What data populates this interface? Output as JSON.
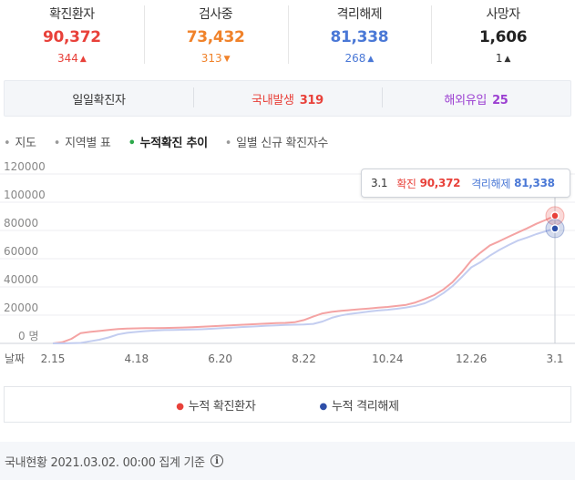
{
  "stats": [
    {
      "label": "확진환자",
      "value": "90,372",
      "delta": "344",
      "color": "#e8413a",
      "delta_color": "#e8413a",
      "delta_direction": "up"
    },
    {
      "label": "검사중",
      "value": "73,432",
      "delta": "313",
      "color": "#f0822a",
      "delta_color": "#f0822a",
      "delta_direction": "down"
    },
    {
      "label": "격리해제",
      "value": "81,338",
      "delta": "268",
      "color": "#4a78d6",
      "delta_color": "#4a78d6",
      "delta_direction": "up"
    },
    {
      "label": "사망자",
      "value": "1,606",
      "delta": "1",
      "color": "#222222",
      "delta_color": "#333333",
      "delta_direction": "up"
    }
  ],
  "daily": {
    "label": "일일확진자",
    "domestic_label": "국내발생",
    "domestic_value": "319",
    "overseas_label": "해외유입",
    "overseas_value": "25",
    "domestic_color": "#e8413a",
    "overseas_color": "#9b3fd1"
  },
  "tabs": [
    {
      "label": "지도",
      "active": false
    },
    {
      "label": "지역별 표",
      "active": false
    },
    {
      "label": "누적확진 추이",
      "active": true
    },
    {
      "label": "일별 신규 확진자수",
      "active": false
    }
  ],
  "tooltip": {
    "date": "3.1",
    "confirmed_label": "확진",
    "confirmed_value": "90,372",
    "released_label": "격리해제",
    "released_value": "81,338"
  },
  "chart_data": {
    "type": "line",
    "x": [
      "2.15",
      "2.22",
      "2.29",
      "3.7",
      "3.14",
      "3.21",
      "3.28",
      "4.4",
      "4.11",
      "4.18",
      "4.25",
      "5.2",
      "5.9",
      "5.16",
      "5.23",
      "5.30",
      "6.6",
      "6.13",
      "6.20",
      "6.27",
      "7.4",
      "7.11",
      "7.18",
      "7.25",
      "8.1",
      "8.8",
      "8.15",
      "8.22",
      "8.29",
      "9.5",
      "9.12",
      "9.19",
      "9.26",
      "10.3",
      "10.10",
      "10.17",
      "10.24",
      "10.31",
      "11.7",
      "11.14",
      "11.21",
      "11.28",
      "12.5",
      "12.12",
      "12.19",
      "12.26",
      "1.2",
      "1.9",
      "1.16",
      "1.23",
      "1.30",
      "2.6",
      "2.13",
      "2.20",
      "3.1"
    ],
    "tick_labels": [
      "2.15",
      "4.18",
      "6.20",
      "8.22",
      "10.24",
      "12.26",
      "3.1"
    ],
    "x_axis_label": "날짜",
    "y_ticks": [
      "0 명",
      "20000",
      "40000",
      "60000",
      "80000",
      "100000",
      "120000"
    ],
    "ylim": [
      0,
      120000
    ],
    "series": [
      {
        "name": "누적 확진환자",
        "color": "#f4a3a3",
        "marker_color": "#e8413a",
        "values": [
          0,
          800,
          3200,
          7300,
          8100,
          8800,
          9500,
          10200,
          10500,
          10650,
          10750,
          10800,
          10900,
          11050,
          11200,
          11500,
          11800,
          12100,
          12400,
          12700,
          13100,
          13400,
          13700,
          14000,
          14300,
          14500,
          15000,
          16500,
          19000,
          21200,
          22300,
          23000,
          23600,
          24200,
          24700,
          25300,
          25800,
          26500,
          27300,
          29000,
          31400,
          34200,
          38200,
          43500,
          50600,
          58700,
          64300,
          69400,
          72300,
          75500,
          78500,
          81500,
          84700,
          87400,
          90372
        ]
      },
      {
        "name": "누적 격리해제",
        "color": "#c3cdf0",
        "marker_color": "#2e4fa8",
        "values": [
          0,
          0,
          100,
          300,
          1500,
          2600,
          4200,
          6300,
          7500,
          8100,
          8700,
          9100,
          9400,
          9500,
          9700,
          9800,
          10000,
          10300,
          10700,
          11000,
          11400,
          11800,
          12100,
          12500,
          12800,
          13100,
          13200,
          13400,
          13800,
          15500,
          18100,
          19800,
          20900,
          21700,
          22600,
          23300,
          23800,
          24500,
          25400,
          26600,
          28400,
          31500,
          35600,
          40700,
          47100,
          53900,
          57600,
          62100,
          66100,
          69600,
          72800,
          75000,
          77400,
          79400,
          81338
        ]
      }
    ]
  },
  "legend": [
    {
      "label": "누적 확진환자",
      "color": "#e8413a"
    },
    {
      "label": "누적 격리해제",
      "color": "#2e4fa8"
    }
  ],
  "footer": {
    "text": "국내현황 2021.03.02. 00:00 집계 기준",
    "icon": "info-icon",
    "icon_glyph": "i"
  }
}
